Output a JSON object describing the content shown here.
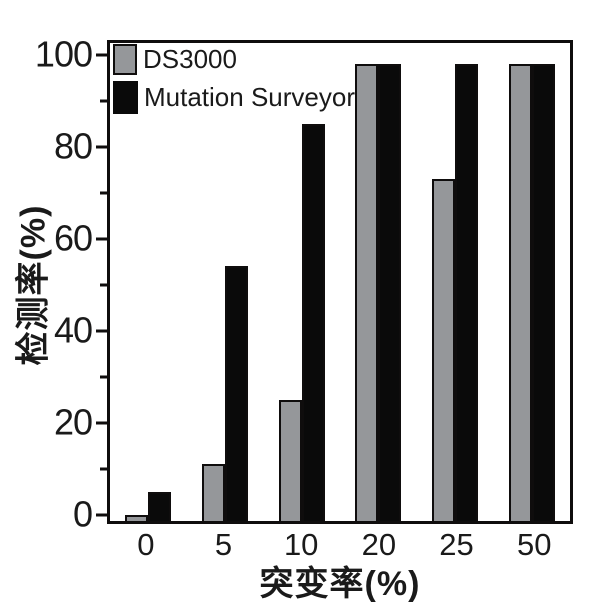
{
  "chart_data": {
    "type": "bar",
    "title": "",
    "xlabel": "突变率(%)",
    "ylabel": "检测率(%)",
    "categories": [
      "0",
      "5",
      "10",
      "20",
      "25",
      "50"
    ],
    "series": [
      {
        "name": "DS3000",
        "color": "#95979a",
        "values": [
          0,
          11,
          25,
          98,
          73,
          98
        ]
      },
      {
        "name": "Mutation Surveyor",
        "color": "#0a0a0a",
        "values": [
          5,
          54,
          85,
          98,
          98,
          98
        ]
      }
    ],
    "yticks": [
      0,
      20,
      40,
      60,
      80,
      100
    ],
    "yminorticks": [
      10,
      30,
      50,
      70,
      90
    ],
    "ylim": [
      -1.4,
      102.6
    ],
    "grid": false,
    "legend_position": "top-left-inside",
    "bar_outline_color": "#0f0d0d",
    "axis_color": "#0f0d0d",
    "text_color": "#1a1a1a",
    "background_color": "#ffffff"
  }
}
